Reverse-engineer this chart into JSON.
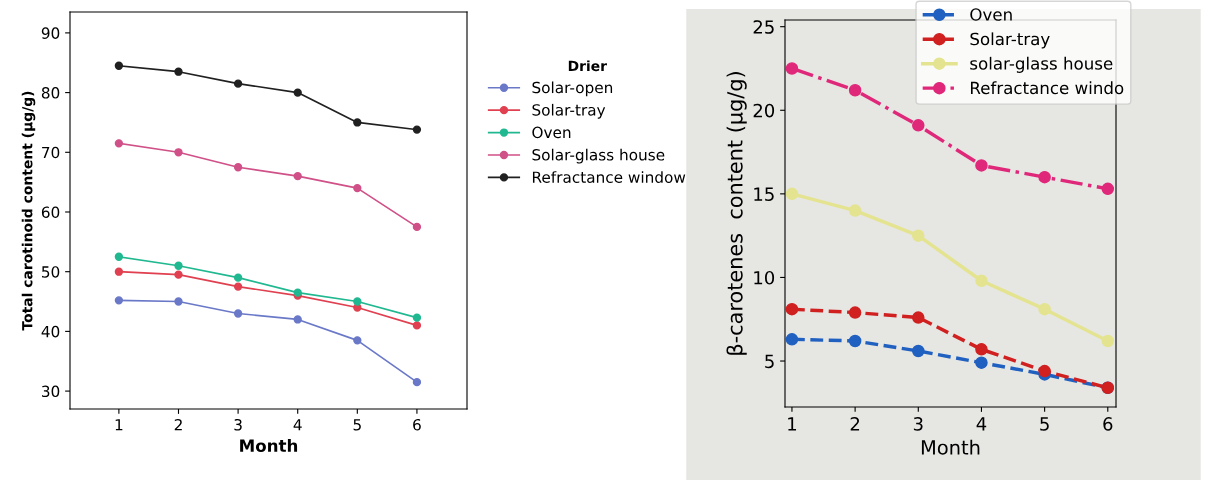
{
  "chart_data": [
    {
      "type": "line",
      "xlabel": "Month",
      "ylabel": "Total carotinoid content (μg/g)",
      "legend_title": "Drier",
      "legend": "right",
      "marker": "circle",
      "line_style": "solid",
      "grid": false,
      "x": [
        1,
        2,
        3,
        4,
        5,
        6
      ],
      "xlim": [
        0.18,
        6.84
      ],
      "xticks": [
        1,
        2,
        3,
        4,
        5,
        6
      ],
      "ylim": [
        27,
        93.5
      ],
      "yticks": [
        30,
        40,
        50,
        60,
        70,
        80,
        90
      ],
      "series": [
        {
          "name": "Solar-open",
          "color": "#6a78c8",
          "values": [
            45.2,
            45,
            43,
            42,
            38.5,
            31.5
          ]
        },
        {
          "name": "Solar-tray",
          "color": "#e04050",
          "values": [
            50,
            49.5,
            47.5,
            46,
            44,
            41
          ]
        },
        {
          "name": "Oven",
          "color": "#20b890",
          "values": [
            52.5,
            51,
            49,
            46.5,
            45,
            42.3
          ]
        },
        {
          "name": "Solar-glass house",
          "color": "#d05088",
          "values": [
            71.5,
            70,
            67.5,
            66,
            64,
            57.5
          ]
        },
        {
          "name": "Refractance window",
          "color": "#202020",
          "values": [
            84.5,
            83.5,
            81.5,
            80,
            75,
            73.8
          ]
        }
      ]
    },
    {
      "type": "line",
      "xlabel": "Month",
      "ylabel": "β-carotenes  content (μg/g)",
      "legend": "top right",
      "marker": "circle",
      "grid": false,
      "x": [
        1,
        2,
        3,
        4,
        5,
        6
      ],
      "xlim": [
        0.89,
        6.13
      ],
      "xticks": [
        1,
        2,
        3,
        4,
        5,
        6
      ],
      "ylim": [
        2.25,
        25.4
      ],
      "yticks": [
        5,
        10,
        15,
        20,
        25
      ],
      "series": [
        {
          "name": "Oven",
          "color": "#2060c0",
          "line_style": "dashed",
          "values": [
            6.3,
            6.2,
            5.6,
            4.9,
            4.2,
            3.4
          ]
        },
        {
          "name": "Solar-tray",
          "color": "#d02020",
          "line_style": "dashed",
          "values": [
            8.1,
            7.9,
            7.6,
            5.7,
            4.4,
            3.4
          ]
        },
        {
          "name": "solar-glass house",
          "color": "#e4e490",
          "line_style": "solid",
          "values": [
            15,
            14,
            12.5,
            9.8,
            8.1,
            6.2
          ]
        },
        {
          "name": "Refractance windo",
          "color": "#e0287a",
          "line_style": "dashdot",
          "values": [
            22.5,
            21.2,
            19.1,
            16.7,
            16,
            15.3
          ]
        }
      ]
    }
  ]
}
